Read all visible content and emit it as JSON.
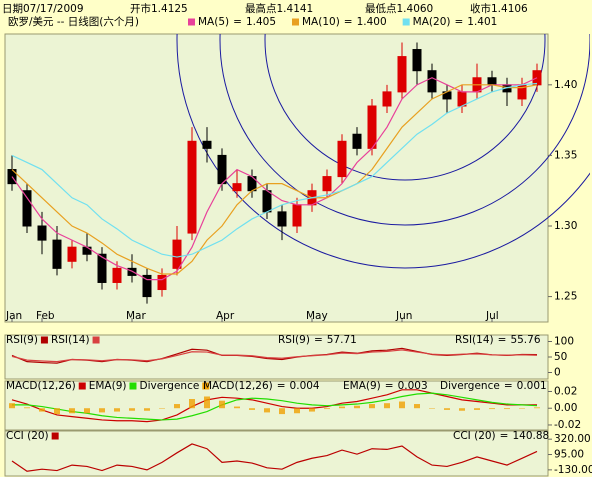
{
  "header": {
    "date_label": "日期",
    "date": "07/17/2009",
    "fields": [
      {
        "label": "开市",
        "value": 1.4125
      },
      {
        "label": "最高点",
        "value": 1.4141
      },
      {
        "label": "最低点",
        "value": {
          "value": 1.406,
          "label": "1.4060"
        }
      },
      {
        "label": "收市",
        "value": 1.4106
      }
    ]
  },
  "chart_data": [
    {
      "type": "candlestick",
      "title": "欧罗/美元 -- 日线图(六个月)",
      "separator": "=",
      "up_color": "#dd0000",
      "down_color": "#000000",
      "open": [
        1.34,
        1.325,
        1.3,
        1.29,
        1.275,
        1.285,
        1.28,
        1.26,
        1.27,
        1.265,
        1.255,
        1.27,
        1.295,
        1.36,
        1.35,
        1.325,
        1.335,
        1.325,
        1.31,
        1.3,
        1.315,
        1.325,
        1.335,
        1.365,
        1.355,
        1.385,
        1.395,
        1.425,
        1.41,
        1.395,
        1.385,
        1.395,
        1.405,
        1.4,
        1.39,
        1.4
      ],
      "high": [
        1.35,
        1.33,
        1.31,
        1.3,
        1.29,
        1.295,
        1.285,
        1.275,
        1.28,
        1.27,
        1.27,
        1.3,
        1.37,
        1.37,
        1.355,
        1.34,
        1.34,
        1.33,
        1.315,
        1.32,
        1.33,
        1.34,
        1.365,
        1.37,
        1.39,
        1.4,
        1.43,
        1.43,
        1.415,
        1.4,
        1.4,
        1.415,
        1.41,
        1.405,
        1.405,
        1.415
      ],
      "low": [
        1.325,
        1.295,
        1.28,
        1.265,
        1.27,
        1.275,
        1.255,
        1.255,
        1.26,
        1.245,
        1.25,
        1.265,
        1.29,
        1.345,
        1.325,
        1.32,
        1.32,
        1.305,
        1.29,
        1.295,
        1.31,
        1.32,
        1.33,
        1.35,
        1.35,
        1.38,
        1.39,
        1.4,
        1.39,
        1.38,
        1.38,
        1.39,
        1.395,
        1.385,
        1.385,
        1.395
      ],
      "close": [
        1.33,
        1.3,
        1.29,
        1.27,
        1.285,
        1.28,
        1.26,
        1.27,
        1.265,
        1.25,
        1.265,
        1.29,
        1.36,
        1.355,
        1.33,
        1.33,
        1.325,
        1.31,
        1.3,
        1.315,
        1.325,
        1.335,
        1.36,
        1.355,
        1.385,
        1.395,
        1.42,
        1.41,
        1.395,
        1.39,
        1.395,
        1.405,
        1.4,
        1.395,
        1.4,
        1.41
      ],
      "series": [
        {
          "name": "MA(5)",
          "color": "#e8409a",
          "readout": 1.405,
          "values": [
            1.335,
            1.32,
            1.305,
            1.295,
            1.29,
            1.285,
            1.278,
            1.272,
            1.268,
            1.262,
            1.262,
            1.268,
            1.285,
            1.31,
            1.33,
            1.34,
            1.335,
            1.325,
            1.318,
            1.315,
            1.315,
            1.32,
            1.33,
            1.345,
            1.355,
            1.37,
            1.39,
            1.4,
            1.405,
            1.4,
            1.395,
            1.395,
            1.4,
            1.4,
            1.4,
            1.405
          ]
        },
        {
          "name": "MA(10)",
          "color": "#e8a020",
          "readout": {
            "value": 1.4,
            "label": "1.400"
          },
          "values": [
            1.34,
            1.33,
            1.32,
            1.31,
            1.3,
            1.295,
            1.288,
            1.28,
            1.275,
            1.27,
            1.266,
            1.266,
            1.275,
            1.29,
            1.3,
            1.315,
            1.325,
            1.33,
            1.33,
            1.325,
            1.32,
            1.32,
            1.325,
            1.33,
            1.34,
            1.355,
            1.37,
            1.38,
            1.39,
            1.395,
            1.4,
            1.4,
            1.4,
            1.398,
            1.398,
            1.4
          ]
        },
        {
          "name": "MA(20)",
          "color": "#70e0f0",
          "readout": 1.401,
          "values": [
            1.35,
            1.345,
            1.34,
            1.33,
            1.32,
            1.315,
            1.305,
            1.298,
            1.29,
            1.285,
            1.28,
            1.278,
            1.28,
            1.285,
            1.29,
            1.298,
            1.305,
            1.31,
            1.315,
            1.318,
            1.32,
            1.322,
            1.325,
            1.33,
            1.335,
            1.345,
            1.355,
            1.365,
            1.372,
            1.38,
            1.385,
            1.39,
            1.395,
            1.398,
            1.4,
            1.401
          ]
        }
      ],
      "xticks": [
        {
          "value": 0,
          "label": "Jan"
        },
        {
          "value": 2,
          "label": "Feb"
        },
        {
          "value": 8,
          "label": "Mar"
        },
        {
          "value": 14,
          "label": "Apr"
        },
        {
          "value": 20,
          "label": "May"
        },
        {
          "value": 26,
          "label": "Jun"
        },
        {
          "value": 32,
          "label": "Jul"
        }
      ],
      "ylim": [
        1.232,
        1.436
      ],
      "yticks": [
        1.25,
        {
          "value": 1.3,
          "label": "1.30"
        },
        1.35,
        {
          "value": 1.4,
          "label": "1.40"
        }
      ]
    },
    {
      "type": "line",
      "separator": "=",
      "ylim": [
        -21,
        121
      ],
      "yticks": [
        0,
        50,
        100
      ],
      "series": [
        {
          "name": "RSI(9)",
          "color": "#b00000",
          "readout": 57.71,
          "values": [
            55,
            35,
            32,
            30,
            42,
            40,
            35,
            42,
            40,
            35,
            45,
            60,
            75,
            72,
            55,
            55,
            52,
            45,
            42,
            50,
            55,
            58,
            66,
            62,
            70,
            72,
            78,
            68,
            58,
            55,
            58,
            62,
            57,
            55,
            58,
            57.71
          ]
        },
        {
          "name": "RSI(14)",
          "color": "#d84040",
          "readout": 55.76,
          "values": [
            52,
            40,
            37,
            35,
            42,
            41,
            38,
            42,
            41,
            38,
            44,
            55,
            67,
            66,
            56,
            56,
            54,
            48,
            46,
            51,
            54,
            57,
            63,
            61,
            66,
            68,
            73,
            66,
            59,
            57,
            59,
            60,
            57,
            56,
            57,
            55.76
          ]
        }
      ]
    },
    {
      "type": "line",
      "separator": "=",
      "ylim": [
        -0.026,
        0.0325
      ],
      "yticks": [
        {
          "value": -0.02,
          "label": "-0.02"
        },
        {
          "value": 0,
          "label": "0.00"
        },
        {
          "value": 0.02,
          "label": "0.02"
        }
      ],
      "series": [
        {
          "name": "MACD(12,26)",
          "color": "#cc0000",
          "readout": 0.004,
          "values": [
            0.01,
            0.005,
            -0.002,
            -0.008,
            -0.01,
            -0.012,
            -0.014,
            -0.015,
            -0.015,
            -0.016,
            -0.014,
            -0.008,
            0.002,
            0.01,
            0.013,
            0.012,
            0.01,
            0.006,
            0.002,
            0.0,
            0.0,
            0.002,
            0.006,
            0.008,
            0.012,
            0.016,
            0.022,
            0.022,
            0.018,
            0.014,
            0.01,
            0.008,
            0.006,
            0.004,
            0.004,
            0.004
          ]
        },
        {
          "name": "EMA(9)",
          "color": "#22dd00",
          "readout": 0.003,
          "values": [
            0.004,
            0.004,
            0.002,
            -0.001,
            -0.004,
            -0.006,
            -0.009,
            -0.011,
            -0.012,
            -0.013,
            -0.014,
            -0.013,
            -0.009,
            -0.004,
            0.004,
            0.01,
            0.012,
            0.011,
            0.009,
            0.006,
            0.004,
            0.003,
            0.004,
            0.005,
            0.007,
            0.01,
            0.014,
            0.017,
            0.018,
            0.016,
            0.013,
            0.01,
            0.007,
            0.005,
            0.004,
            0.003
          ]
        },
        {
          "name": "Divergence",
          "kind": "bar",
          "color": "#f0a000",
          "readout": 0.001,
          "values": [
            0.006,
            0.001,
            -0.004,
            -0.007,
            -0.006,
            -0.006,
            -0.005,
            -0.004,
            -0.003,
            -0.003,
            0.0,
            0.005,
            0.011,
            0.014,
            0.009,
            0.002,
            -0.002,
            -0.005,
            -0.007,
            -0.006,
            -0.004,
            -0.001,
            0.002,
            0.003,
            0.005,
            0.006,
            0.008,
            0.005,
            0.0,
            -0.002,
            -0.003,
            -0.002,
            -0.001,
            -0.001,
            0.0,
            0.001
          ]
        }
      ]
    },
    {
      "type": "line",
      "separator": "=",
      "ylim": [
        -220,
        440
      ],
      "yticks": [
        {
          "value": -130,
          "label": "-130.00"
        },
        {
          "value": 95,
          "label": "95.00"
        },
        {
          "value": 320,
          "label": "320.00"
        }
      ],
      "series": [
        {
          "name": "CCI (20)",
          "color": "#bb0000",
          "readout": 140.88,
          "values": [
            0,
            -150,
            -120,
            -140,
            -60,
            -80,
            -140,
            -60,
            -80,
            -130,
            -20,
            120,
            250,
            180,
            -20,
            0,
            -30,
            -100,
            -120,
            -20,
            40,
            80,
            160,
            100,
            180,
            170,
            220,
            60,
            -60,
            -80,
            -20,
            60,
            0,
            -60,
            40,
            140.88
          ]
        }
      ]
    }
  ]
}
